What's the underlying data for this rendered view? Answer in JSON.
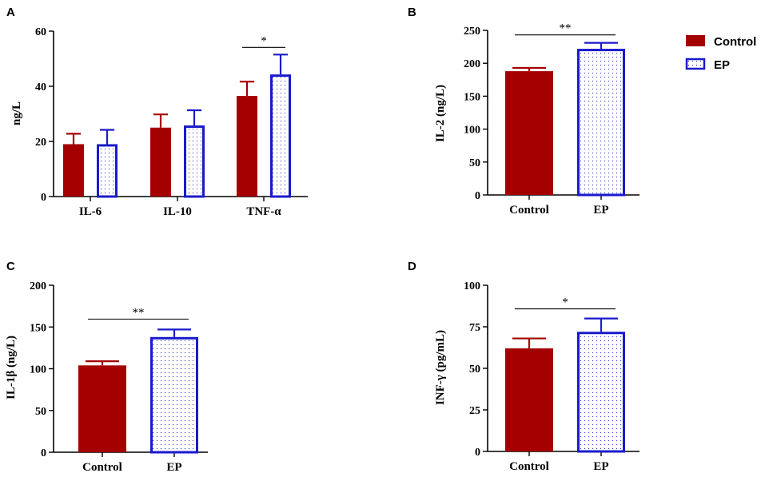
{
  "colors": {
    "control_fill": "#a50000",
    "ep_stroke": "#1a1acc",
    "ep_dots": "#2a3ccf",
    "axis": "#000000"
  },
  "legend": {
    "entries": [
      {
        "label": "Control",
        "series": "Control"
      },
      {
        "label": "EP",
        "series": "EP"
      }
    ]
  },
  "chart_data": [
    {
      "panel": "A",
      "type": "bar",
      "ylabel": "ng/L",
      "ylim": [
        0,
        60
      ],
      "yticks": [
        0,
        20,
        40,
        60
      ],
      "categories": [
        "IL-6",
        "IL-10",
        "TNF-α"
      ],
      "series": [
        {
          "name": "Control",
          "values": [
            19,
            25,
            36.5
          ],
          "errors": [
            3.8,
            4.8,
            5.2
          ]
        },
        {
          "name": "EP",
          "values": [
            19,
            25.8,
            44.3
          ],
          "errors": [
            5.2,
            5.5,
            7.2
          ]
        }
      ],
      "significance": [
        {
          "category": "TNF-α",
          "label": "*"
        }
      ]
    },
    {
      "panel": "B",
      "type": "bar",
      "ylabel": "IL-2 (ng/L)",
      "ylim": [
        0,
        250
      ],
      "yticks": [
        0,
        50,
        100,
        150,
        200,
        250
      ],
      "categories": [
        "Control",
        "EP"
      ],
      "values": [
        188,
        222
      ],
      "errors": [
        5,
        9
      ],
      "significance": [
        {
          "label": "**"
        }
      ]
    },
    {
      "panel": "C",
      "type": "bar",
      "ylabel": "IL-1β (ng/L)",
      "ylim": [
        0,
        200
      ],
      "yticks": [
        0,
        50,
        100,
        150,
        200
      ],
      "categories": [
        "Control",
        "EP"
      ],
      "values": [
        104,
        138
      ],
      "errors": [
        5,
        9
      ],
      "significance": [
        {
          "label": "**"
        }
      ]
    },
    {
      "panel": "D",
      "type": "bar",
      "ylabel": "INF-γ (pg/mL)",
      "ylim": [
        0,
        100
      ],
      "yticks": [
        0,
        25,
        50,
        75,
        100
      ],
      "categories": [
        "Control",
        "EP"
      ],
      "values": [
        62,
        72
      ],
      "errors": [
        6,
        8
      ],
      "significance": [
        {
          "label": "*"
        }
      ]
    }
  ]
}
